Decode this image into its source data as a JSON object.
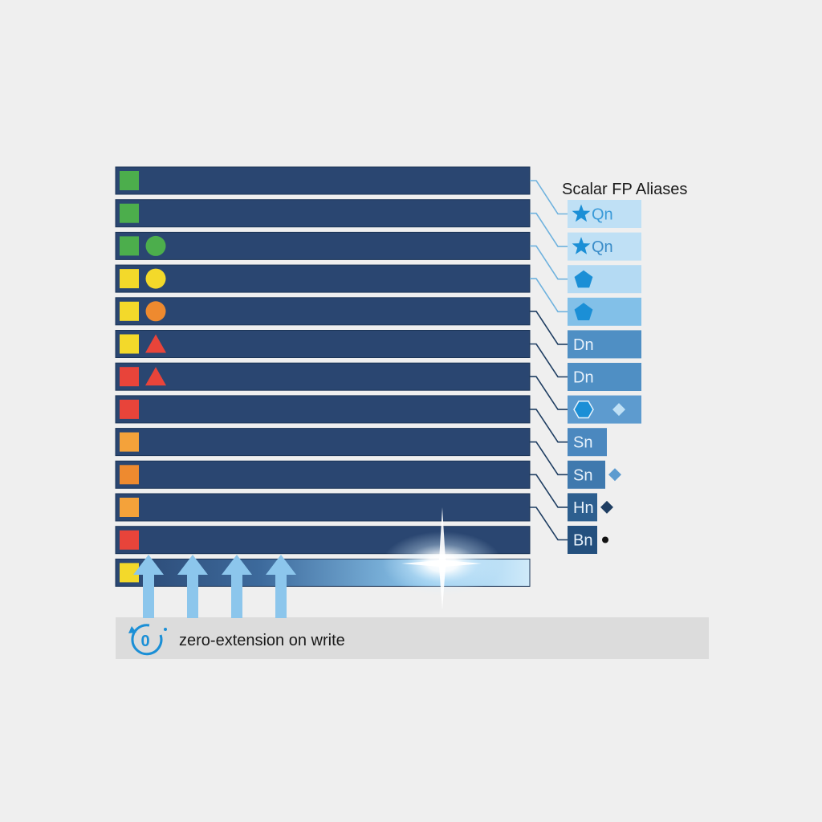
{
  "title": "Scalar FP Aliases",
  "colors": {
    "register_bar": "#2a4671",
    "register_bar_edge": "#1c3557",
    "background": "#efefef",
    "connector": "#6fb2de",
    "connector_dark": "#1f3e62",
    "arrow": "#8cc6ec",
    "caption_bg": "#dcdcdc",
    "green": "#4cae4c",
    "yellow": "#f3d92a",
    "orange": "#ee8a2f",
    "amber": "#f4a23a",
    "red": "#e8443a",
    "glyph_blue": "#1b8fd6",
    "glyph_navy": "#1f3e62",
    "glyph_black": "#111111"
  },
  "registers": [
    {
      "markers": [
        {
          "shape": "square",
          "color": "green"
        }
      ]
    },
    {
      "markers": [
        {
          "shape": "square",
          "color": "green"
        }
      ]
    },
    {
      "markers": [
        {
          "shape": "square",
          "color": "green"
        },
        {
          "shape": "circle",
          "color": "green"
        }
      ]
    },
    {
      "markers": [
        {
          "shape": "square",
          "color": "yellow"
        },
        {
          "shape": "circle",
          "color": "yellow"
        }
      ]
    },
    {
      "markers": [
        {
          "shape": "square",
          "color": "yellow"
        },
        {
          "shape": "circle",
          "color": "orange"
        }
      ]
    },
    {
      "markers": [
        {
          "shape": "square",
          "color": "yellow"
        },
        {
          "shape": "triangle",
          "color": "red"
        }
      ]
    },
    {
      "markers": [
        {
          "shape": "square",
          "color": "red"
        },
        {
          "shape": "triangle",
          "color": "red"
        }
      ]
    },
    {
      "markers": [
        {
          "shape": "square",
          "color": "red"
        }
      ]
    },
    {
      "markers": [
        {
          "shape": "square",
          "color": "amber"
        }
      ]
    },
    {
      "markers": [
        {
          "shape": "square",
          "color": "orange"
        }
      ]
    },
    {
      "markers": [
        {
          "shape": "square",
          "color": "amber"
        }
      ]
    },
    {
      "markers": [
        {
          "shape": "square",
          "color": "red"
        }
      ]
    },
    {
      "markers": [
        {
          "shape": "square",
          "color": "yellow"
        }
      ],
      "highlighted": true
    }
  ],
  "aliases": [
    {
      "label": "Qn",
      "icon": "star-icon",
      "box_color": "#bfe0f5",
      "text_color": "#3a9ad8"
    },
    {
      "label": "Qn",
      "icon": "star-icon",
      "box_color": "#bfe0f5",
      "text_color": "#3a8cc8"
    },
    {
      "label": "",
      "icon": "pentagon-icon",
      "box_color": "#b4daf3"
    },
    {
      "label": "",
      "icon": "pentagon-icon",
      "box_color": "#82c0e8"
    },
    {
      "label": "Dn",
      "icon": "",
      "box_color": "#4f8fc4",
      "text_color": "#e8f2fb"
    },
    {
      "label": "Dn",
      "icon": "",
      "box_color": "#4f8fc4",
      "text_color": "#e8f2fb"
    },
    {
      "label": "",
      "icon": "hexagon-icon",
      "box_color": "#5d9bcf",
      "extra": "diamond-icon",
      "extra_color": "#bfe0f5"
    },
    {
      "label": "Sn",
      "icon": "",
      "box_color": "#4b88bf",
      "text_color": "#e8f2fb"
    },
    {
      "label": "Sn",
      "icon": "",
      "box_color": "#3f79ae",
      "text_color": "#e8f2fb",
      "extra": "diamond-icon",
      "extra_color": "#5d9bcf"
    },
    {
      "label": "Hn",
      "icon": "",
      "box_color": "#2d5f8f",
      "text_color": "#e8f2fb",
      "extra": "diamond-icon",
      "extra_color": "#1f3e62"
    },
    {
      "label": "Bn",
      "icon": "",
      "box_color": "#24507e",
      "text_color": "#e8f2fb",
      "extra": "dot-icon",
      "extra_color": "#111111"
    }
  ],
  "write_arrows": 4,
  "caption": {
    "icon": "zero-reset-icon",
    "icon_text": "0",
    "text": "zero-extension on write"
  }
}
